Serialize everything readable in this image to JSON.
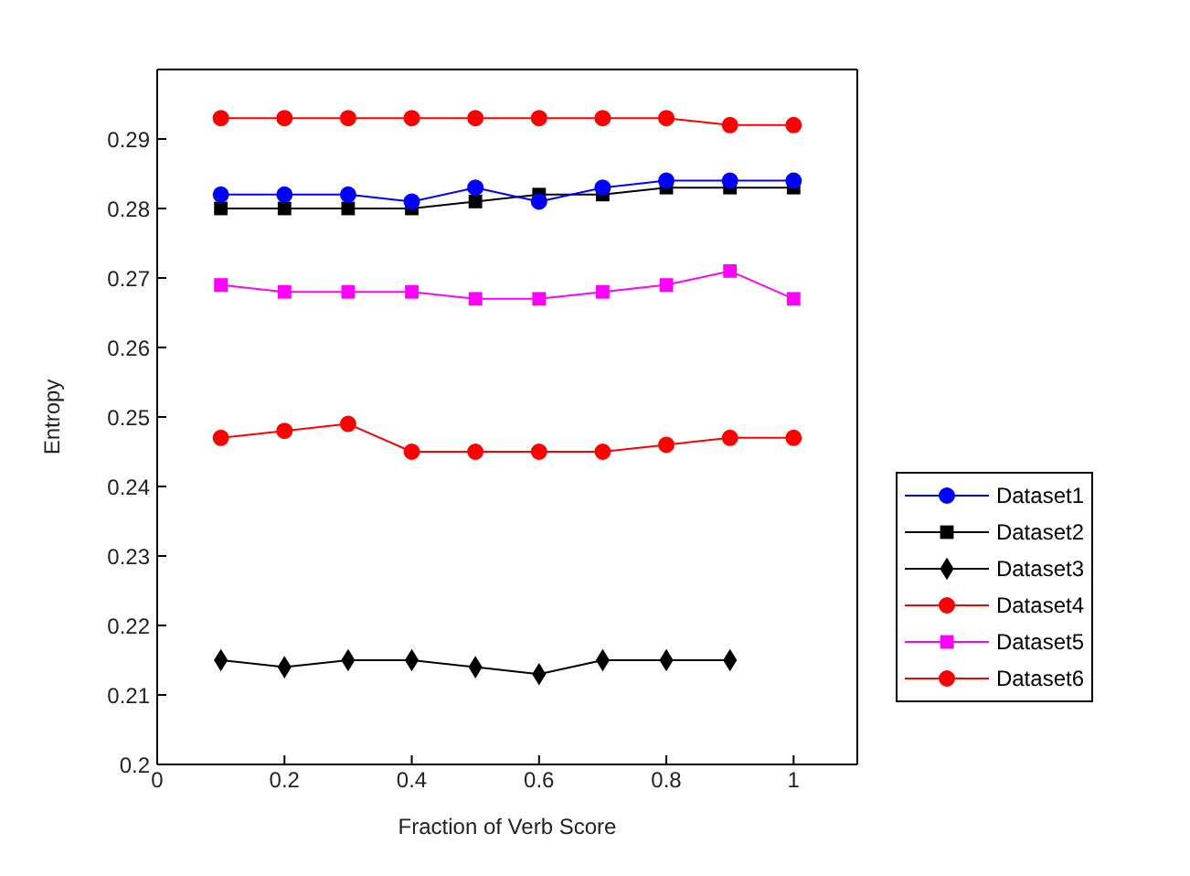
{
  "chart_data": {
    "type": "line",
    "xlabel": "Fraction of Verb Score",
    "ylabel": "Entropy",
    "x": [
      0.1,
      0.2,
      0.3,
      0.4,
      0.5,
      0.6,
      0.7,
      0.8,
      0.9,
      1.0
    ],
    "xlim": [
      0,
      1.1
    ],
    "xticks": [
      0,
      0.2,
      0.4,
      0.6,
      0.8,
      1
    ],
    "ylim": [
      0.2,
      0.3
    ],
    "yticks": [
      0.2,
      0.21,
      0.22,
      0.23,
      0.24,
      0.25,
      0.26,
      0.27,
      0.28,
      0.29
    ],
    "grid": false,
    "legend": "bottom right",
    "series": [
      {
        "name": "Dataset1",
        "color": "#0000ff",
        "marker": "circle",
        "values": [
          0.282,
          0.282,
          0.282,
          0.281,
          0.283,
          0.281,
          0.283,
          0.284,
          0.284,
          0.284
        ]
      },
      {
        "name": "Dataset2",
        "color": "#000000",
        "marker": "square",
        "values": [
          0.28,
          0.28,
          0.28,
          0.28,
          0.281,
          0.282,
          0.282,
          0.283,
          0.283,
          0.283
        ]
      },
      {
        "name": "Dataset3",
        "color": "#000000",
        "marker": "diamond",
        "values": [
          0.215,
          0.214,
          0.215,
          0.215,
          0.214,
          0.213,
          0.215,
          0.215,
          0.215,
          null
        ]
      },
      {
        "name": "Dataset4",
        "color": "#ff0000",
        "marker": "circle",
        "values": [
          0.247,
          0.248,
          0.249,
          0.245,
          0.245,
          0.245,
          0.245,
          0.246,
          0.247,
          0.247
        ]
      },
      {
        "name": "Dataset5",
        "color": "#ff00ff",
        "marker": "square",
        "values": [
          0.269,
          0.268,
          0.268,
          0.268,
          0.267,
          0.267,
          0.268,
          0.269,
          0.271,
          0.267
        ]
      },
      {
        "name": "Dataset6",
        "color": "#ff0000",
        "marker": "circle",
        "values": [
          0.293,
          0.293,
          0.293,
          0.293,
          0.293,
          0.293,
          0.293,
          0.293,
          0.292,
          0.292
        ]
      }
    ]
  }
}
